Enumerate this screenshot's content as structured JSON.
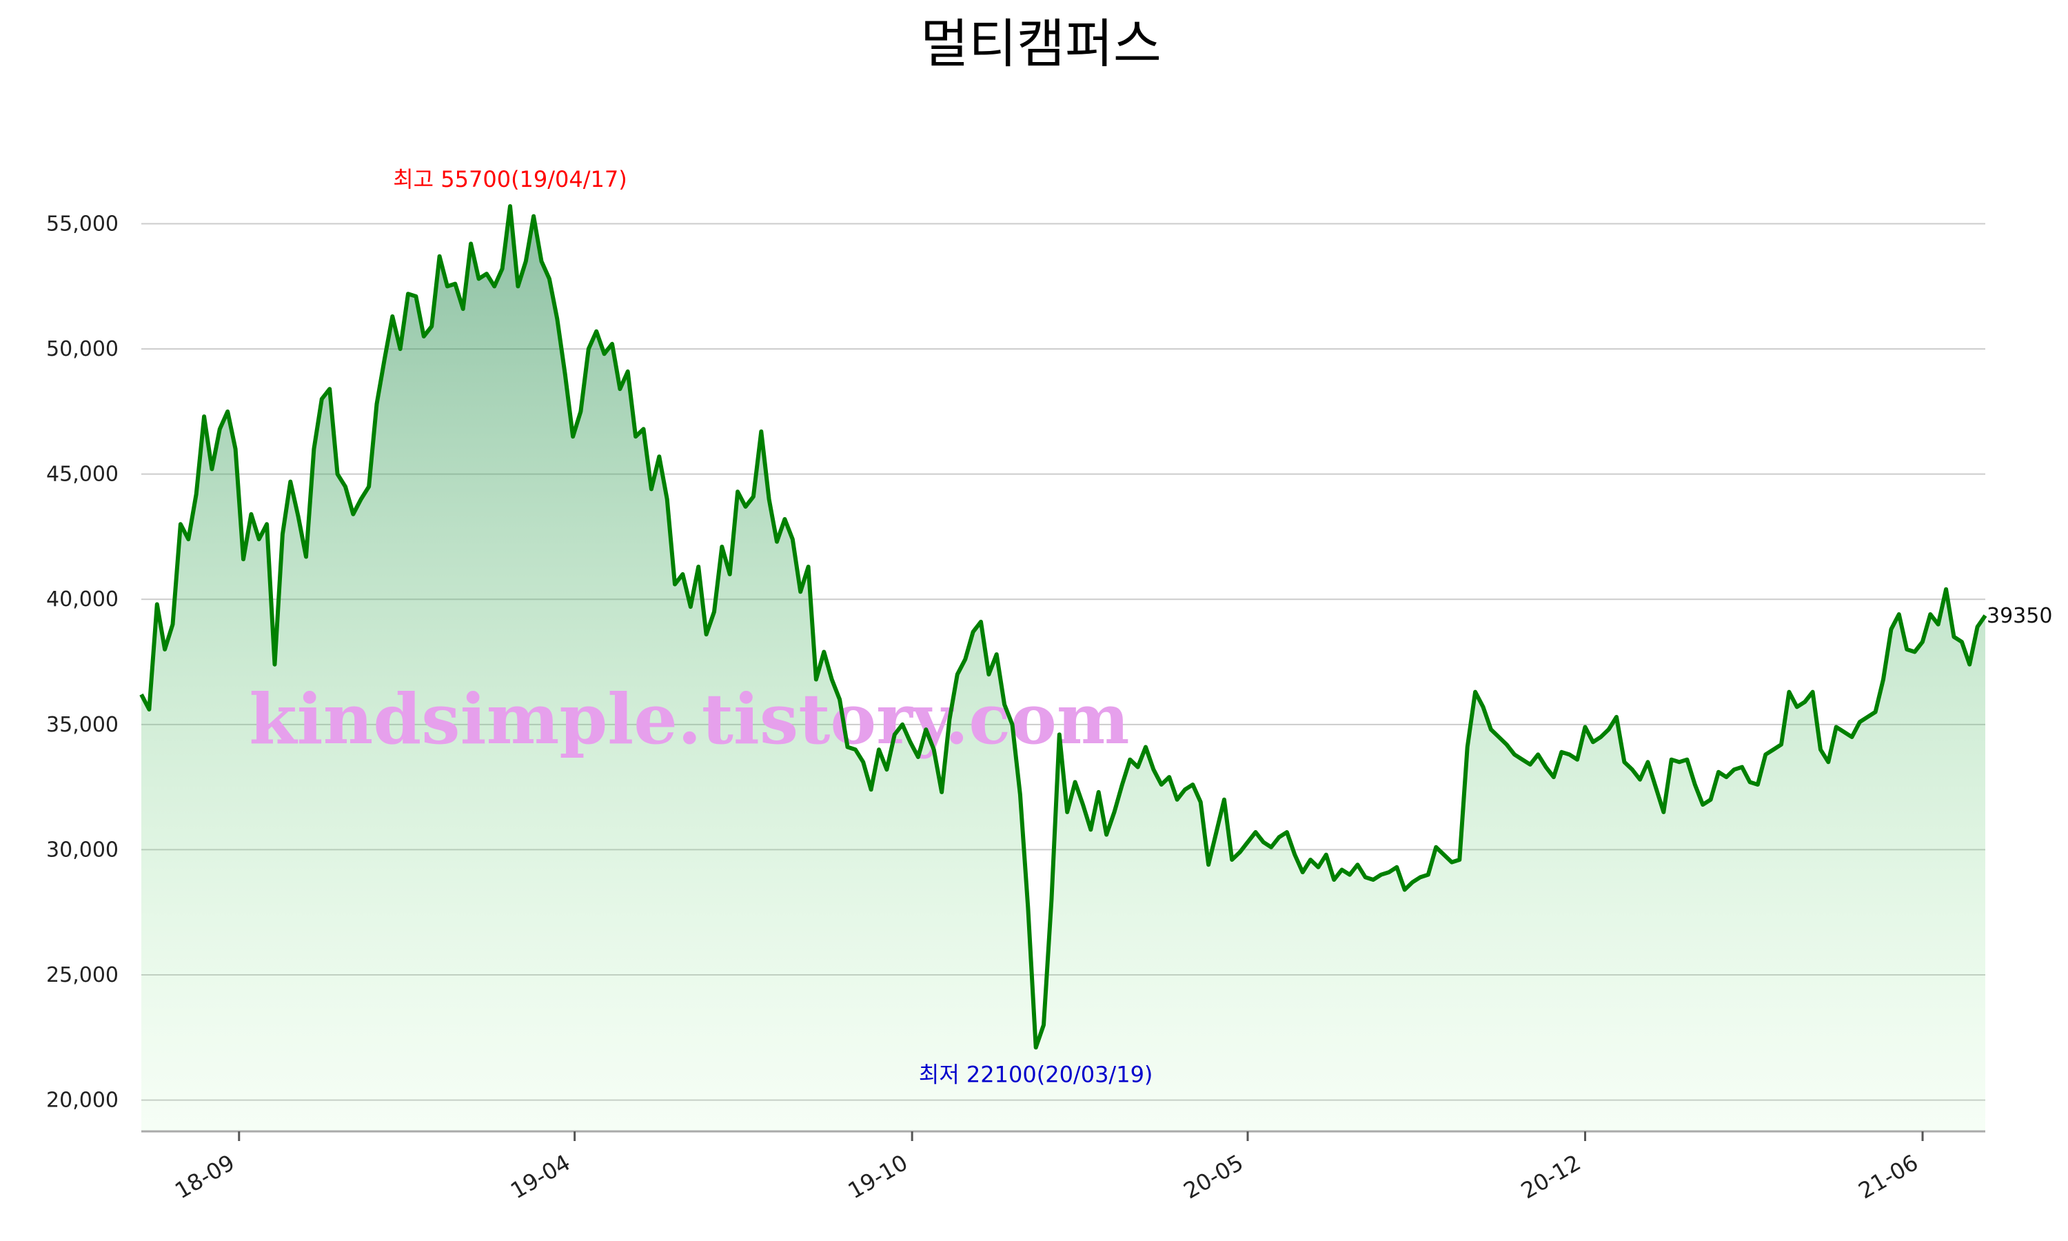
{
  "chart_data": {
    "type": "area",
    "title": "멀티캠퍼스",
    "xlabel": "",
    "ylabel": "",
    "ylim": [
      18750,
      56500
    ],
    "grid": true,
    "y_ticks": [
      20000,
      25000,
      30000,
      35000,
      40000,
      45000,
      50000,
      55000
    ],
    "y_tick_labels": [
      "20,000",
      "25,000",
      "30,000",
      "35,000",
      "40,000",
      "45,000",
      "50,000",
      "55,000"
    ],
    "x_tick_labels": [
      "18-09",
      "19-04",
      "19-10",
      "20-05",
      "20-12",
      "21-06"
    ],
    "x_tick_positions": [
      0.053,
      0.235,
      0.418,
      0.6,
      0.783,
      0.966
    ],
    "line_color": "#008000",
    "fill_color": "#2e8b57",
    "series": [
      {
        "values": [
          36200,
          35600,
          39800,
          38000,
          39000,
          43000,
          42400,
          44200,
          47300,
          45200,
          46800,
          47500,
          46000,
          41600,
          43400,
          42400,
          43000,
          37400,
          42600,
          44700,
          43300,
          41700,
          46000,
          48000,
          48400,
          45000,
          44500,
          43400,
          44000,
          44500,
          47800,
          49600,
          51300,
          50000,
          52200,
          52100,
          50500,
          50900,
          53700,
          52500,
          52600,
          51600,
          54200,
          52800,
          53000,
          52500,
          53200,
          55700,
          52500,
          53500,
          55300,
          53500,
          52800,
          51200,
          49000,
          46500,
          47500,
          50000,
          50700,
          49800,
          50200,
          48400,
          49100,
          46500,
          46800,
          44400,
          45700,
          44000,
          40600,
          41000,
          39700,
          41300,
          38600,
          39500,
          42100,
          41000,
          44300,
          43700,
          44100,
          46700,
          44000,
          42300,
          43200,
          42400,
          40300,
          41300,
          36800,
          37900,
          36800,
          36000,
          34100,
          34000,
          33500,
          32400,
          34000,
          33200,
          34600,
          35000,
          34300,
          33700,
          34800,
          34000,
          32300,
          35200,
          37000,
          37600,
          38700,
          39100,
          37000,
          37800,
          35800,
          35000,
          32200,
          27700,
          22100,
          23000,
          28000,
          34600,
          31500,
          32700,
          31800,
          30800,
          32300,
          30600,
          31500,
          32600,
          33600,
          33300,
          34100,
          33200,
          32600,
          32900,
          32000,
          32400,
          32600,
          31900,
          29400,
          30700,
          32000,
          29600,
          29900,
          30300,
          30700,
          30300,
          30100,
          30500,
          30700,
          29800,
          29100,
          29600,
          29300,
          29800,
          28800,
          29200,
          29000,
          29400,
          28900,
          28800,
          29000,
          29100,
          29300,
          28400,
          28700,
          28900,
          29000,
          30100,
          29800,
          29500,
          29600,
          34100,
          36300,
          35700,
          34800,
          34500,
          34200,
          33800,
          33600,
          33400,
          33800,
          33300,
          32900,
          33900,
          33800,
          33600,
          34900,
          34300,
          34500,
          34800,
          35300,
          33500,
          33200,
          32800,
          33500,
          32500,
          31500,
          33600,
          33500,
          33600,
          32600,
          31800,
          32000,
          33100,
          32900,
          33200,
          33300,
          32700,
          32600,
          33800,
          34000,
          34200,
          36300,
          35700,
          35900,
          36300,
          34000,
          33500,
          34900,
          34700,
          34500,
          35100,
          35300,
          35500,
          36800,
          38800,
          39400,
          38000,
          37900,
          38300,
          39400,
          39000,
          40400,
          38500,
          38300,
          37400,
          38900,
          39350
        ]
      }
    ],
    "annotations": {
      "high": {
        "text": "최고 55700(19/04/17)",
        "value": 55700,
        "index": 47,
        "color": "#ff0000"
      },
      "low": {
        "text": "최저 22100(20/03/19)",
        "value": 22100,
        "index": 114,
        "color": "#0000cc"
      },
      "last": {
        "text": "39350",
        "value": 39350
      }
    },
    "watermark": "kindsimple.tistory.com"
  }
}
